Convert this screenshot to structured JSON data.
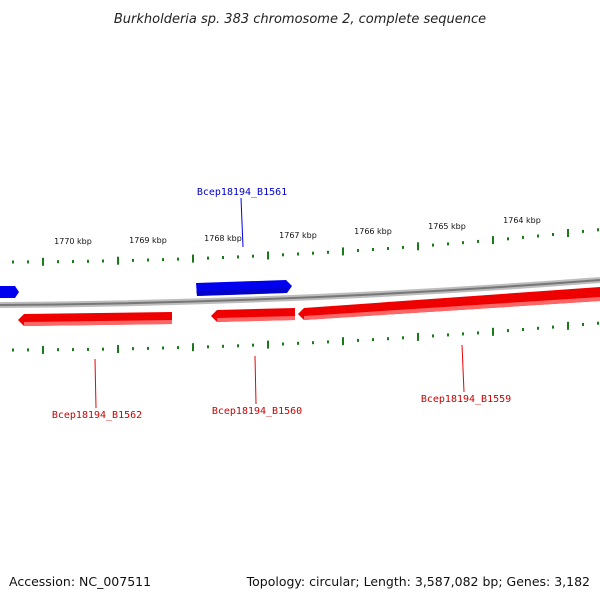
{
  "title": "Burkholderia sp. 383 chromosome 2, complete sequence",
  "footer": {
    "accession": "Accession: NC_007511",
    "summary": "Topology: circular; Length: 3,587,082 bp; Genes: 3,182"
  },
  "colors": {
    "forward": "#0000ee",
    "reverse": "#ee0000",
    "tick": "#1a7a1a",
    "backbone": "#888888"
  },
  "scale_labels": [
    "1770 kbp",
    "1769 kbp",
    "1768 kbp",
    "1767 kbp",
    "1766 kbp",
    "1765 kbp",
    "1764 kbp"
  ],
  "gene_labels": [
    {
      "text": "Bcep18194_B1561",
      "strand": "forward"
    },
    {
      "text": "Bcep18194_B1562",
      "strand": "reverse"
    },
    {
      "text": "Bcep18194_B1560",
      "strand": "reverse"
    },
    {
      "text": "Bcep18194_B1559",
      "strand": "reverse"
    }
  ]
}
